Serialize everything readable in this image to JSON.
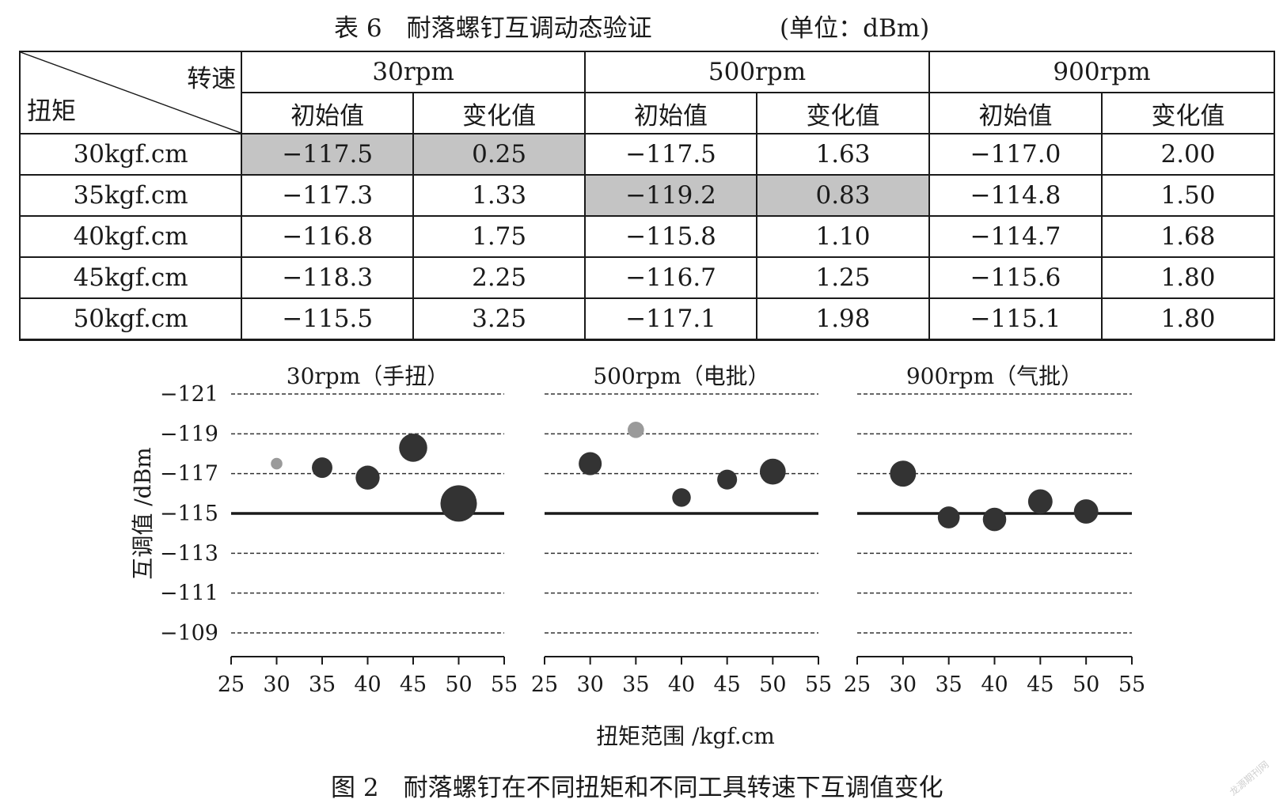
{
  "table": {
    "caption": "表 6　耐落螺钉互调动态验证",
    "unit": "(单位：dBm)",
    "corner_top": "转速",
    "corner_bottom": "扭矩",
    "speed_headers": [
      "30rpm",
      "500rpm",
      "900rpm"
    ],
    "sub_headers": [
      "初始值",
      "变化值",
      "初始值",
      "变化值",
      "初始值",
      "变化值"
    ],
    "rows": [
      {
        "torque": "30kgf.cm",
        "cells": [
          "−117.5",
          "0.25",
          "−117.5",
          "1.63",
          "−117.0",
          "2.00"
        ]
      },
      {
        "torque": "35kgf.cm",
        "cells": [
          "−117.3",
          "1.33",
          "−119.2",
          "0.83",
          "−114.8",
          "1.50"
        ]
      },
      {
        "torque": "40kgf.cm",
        "cells": [
          "−116.8",
          "1.75",
          "−115.8",
          "1.10",
          "−114.7",
          "1.68"
        ]
      },
      {
        "torque": "45kgf.cm",
        "cells": [
          "−118.3",
          "2.25",
          "−116.7",
          "1.25",
          "−115.6",
          "1.80"
        ]
      },
      {
        "torque": "50kgf.cm",
        "cells": [
          "−115.5",
          "3.25",
          "−117.1",
          "1.98",
          "−115.1",
          "1.80"
        ]
      }
    ],
    "highlight_cells": [
      [
        0,
        0
      ],
      [
        0,
        1
      ],
      [
        1,
        2
      ],
      [
        1,
        3
      ]
    ],
    "highlight_color": "#c4c4c4"
  },
  "chart_data": {
    "type": "scatter",
    "bubble": true,
    "ylabel": "互调值 /dBm",
    "xlabel": "扭矩范围 /kgf.cm",
    "y_ticks": [
      "−121",
      "−119",
      "−117",
      "−115",
      "−113",
      "−111",
      "−109"
    ],
    "x_ticks": [
      "25",
      "30",
      "35",
      "40",
      "45",
      "50",
      "55"
    ],
    "xlim": [
      25,
      55
    ],
    "ylim": [
      -121,
      -109
    ],
    "reference_line_y": -115,
    "gridlines": "dashed",
    "colors": {
      "point": "#333333",
      "highlight_point": "#9a9a9a"
    },
    "panels": [
      {
        "title": "30rpm（手扭）",
        "points": [
          {
            "x": 30,
            "y": -117.5,
            "size": 0.25,
            "highlight": true
          },
          {
            "x": 35,
            "y": -117.3,
            "size": 1.33
          },
          {
            "x": 40,
            "y": -116.8,
            "size": 1.75
          },
          {
            "x": 45,
            "y": -118.3,
            "size": 2.25
          },
          {
            "x": 50,
            "y": -115.5,
            "size": 3.25
          }
        ]
      },
      {
        "title": "500rpm（电批）",
        "points": [
          {
            "x": 30,
            "y": -117.5,
            "size": 1.63
          },
          {
            "x": 35,
            "y": -119.2,
            "size": 0.83,
            "highlight": true
          },
          {
            "x": 40,
            "y": -115.8,
            "size": 1.1
          },
          {
            "x": 45,
            "y": -116.7,
            "size": 1.25
          },
          {
            "x": 50,
            "y": -117.1,
            "size": 1.98
          }
        ]
      },
      {
        "title": "900rpm（气批）",
        "points": [
          {
            "x": 30,
            "y": -117.0,
            "size": 2.0
          },
          {
            "x": 35,
            "y": -114.8,
            "size": 1.5
          },
          {
            "x": 40,
            "y": -114.7,
            "size": 1.68
          },
          {
            "x": 45,
            "y": -115.6,
            "size": 1.8
          },
          {
            "x": 50,
            "y": -115.1,
            "size": 1.8
          }
        ]
      }
    ]
  },
  "figure_caption": "图 2　耐落螺钉在不同扭矩和不同工具转速下互调值变化",
  "watermark": "龙源期刊网"
}
